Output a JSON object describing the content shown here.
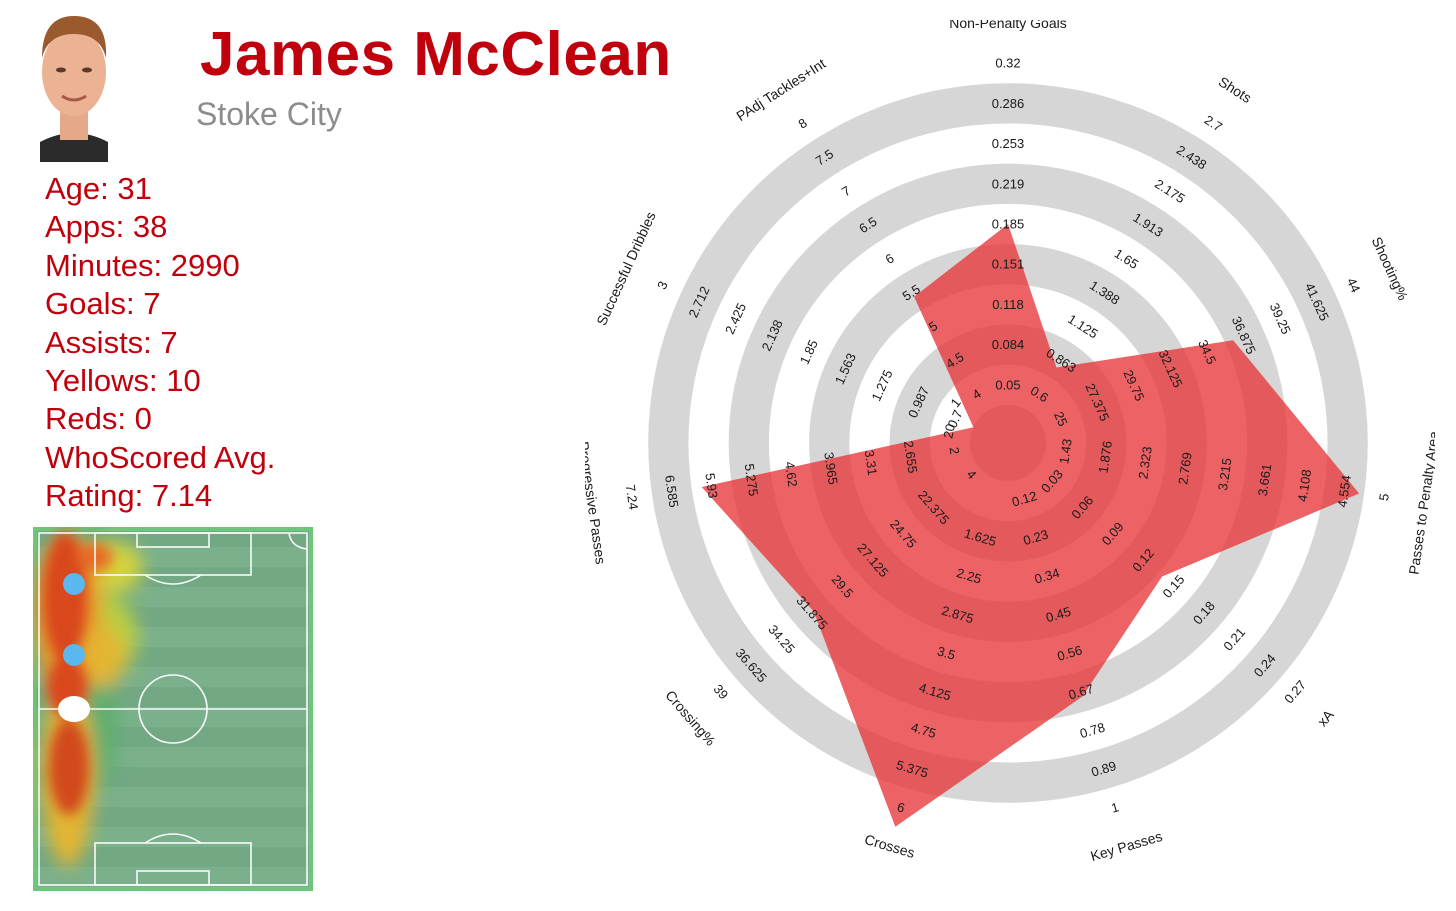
{
  "player": {
    "name": "James McClean",
    "club": "Stoke City",
    "stats": [
      "Age: 31",
      "Apps: 38",
      "Minutes: 2990",
      "Goals: 7",
      "Assists: 7",
      "Yellows: 10",
      "Reds: 0",
      "WhoScored Avg.",
      "Rating: 7.14"
    ]
  },
  "colors": {
    "title": "#c0000c",
    "club": "#8c8c8c",
    "radar_fill": "#e8373a",
    "radar_ring": "#d6d6d6",
    "pitch": "#4db56a"
  },
  "chart_data": {
    "type": "radar",
    "title": "",
    "axes": [
      {
        "name": "Non-Penalty Goals",
        "ticks": [
          "0.05",
          "0.084",
          "0.118",
          "0.151",
          "0.185",
          "0.219",
          "0.253",
          "0.286",
          "0.32"
        ],
        "min": 0.05,
        "max": 0.32,
        "value": 0.185
      },
      {
        "name": "Shots",
        "ticks": [
          "0.6",
          "0.863",
          "1.125",
          "1.388",
          "1.65",
          "1.913",
          "2.175",
          "2.438",
          "2.7"
        ],
        "min": 0.6,
        "max": 2.7,
        "value": 0.9
      },
      {
        "name": "Shooting%",
        "ticks": [
          "25",
          "27.375",
          "29.75",
          "32.125",
          "34.5",
          "36.875",
          "39.25",
          "41.625",
          "44"
        ],
        "min": 25,
        "max": 44,
        "value": 36.0
      },
      {
        "name": "Passes to Penalty Area",
        "ticks": [
          "1.43",
          "1.876",
          "2.323",
          "2.769",
          "3.215",
          "3.661",
          "4.108",
          "4.554",
          "5"
        ],
        "min": 1.43,
        "max": 5,
        "value": 4.554
      },
      {
        "name": "xA",
        "ticks": [
          "0.03",
          "0.06",
          "0.09",
          "0.12",
          "0.15",
          "0.18",
          "0.21",
          "0.24",
          "0.27"
        ],
        "min": 0.03,
        "max": 0.27,
        "value": 0.14
      },
      {
        "name": "Key Passes",
        "ticks": [
          "0.12",
          "0.23",
          "0.34",
          "0.45",
          "0.56",
          "0.67",
          "0.78",
          "0.89",
          "1"
        ],
        "min": 0.12,
        "max": 1,
        "value": 0.67
      },
      {
        "name": "Crosses",
        "ticks": [
          "1.625",
          "2.25",
          "2.875",
          "3.5",
          "4.125",
          "4.75",
          "5.375",
          "6"
        ],
        "min": 1,
        "max": 6,
        "value": 6
      },
      {
        "name": "Crossing%",
        "ticks": [
          "22.375",
          "24.75",
          "27.125",
          "29.5",
          "31.875",
          "34.25",
          "36.625",
          "39"
        ],
        "min": 20,
        "max": 39,
        "value": 31.5
      },
      {
        "name": "Progressive Passes",
        "ticks": [
          "2.655",
          "3.31",
          "3.965",
          "4.62",
          "5.275",
          "5.93",
          "6.585",
          "7.24"
        ],
        "min": 2,
        "max": 7.24,
        "value": 5.93
      },
      {
        "name": "Successful Dribbles",
        "ticks": [
          "0.7",
          "0.987",
          "1.275",
          "1.563",
          "1.85",
          "2.138",
          "2.425",
          "2.712",
          "3"
        ],
        "min": 0.7,
        "max": 3,
        "value": 0.7
      },
      {
        "name": "PAdj Tackles+Int",
        "ticks": [
          "4",
          "4.5",
          "5",
          "5.5",
          "6",
          "6.5",
          "7",
          "7.5",
          "8"
        ],
        "min": 4,
        "max": 8,
        "value": 5.5
      }
    ],
    "center_ticks": [
      "4",
      "2",
      "20",
      "1"
    ],
    "legend": "none"
  }
}
